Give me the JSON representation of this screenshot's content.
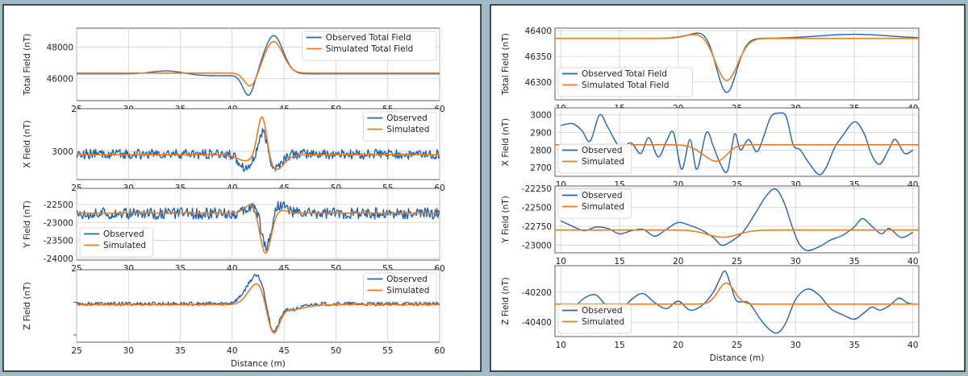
{
  "chart_data": [
    {
      "type": "line",
      "panel": "left",
      "row": 0,
      "xlim": [
        25,
        60
      ],
      "ylim": [
        44600,
        49200
      ],
      "xticks": [
        25,
        30,
        35,
        40,
        45,
        50,
        55,
        60
      ],
      "yticks": [
        46000,
        48000
      ],
      "ylabel": "Total Field (nT)",
      "xlabel": "",
      "legend_loc": "top-right",
      "series": [
        {
          "name": "Observed Total Field",
          "color": "#1f63b1",
          "baseline": 46300,
          "noise": 0,
          "features": [
            [
              33.8,
              1.5,
              220
            ],
            [
              41.6,
              0.55,
              -1350
            ],
            [
              44.0,
              0.9,
              2450
            ],
            [
              38.5,
              3,
              -120
            ]
          ]
        },
        {
          "name": "Simulated Total Field",
          "color": "#f07a18",
          "baseline": 46350,
          "noise": 0,
          "features": [
            [
              41.8,
              0.6,
              -900
            ],
            [
              44.0,
              0.9,
              2000
            ]
          ]
        }
      ]
    },
    {
      "type": "line",
      "panel": "left",
      "row": 1,
      "xlim": [
        25,
        60
      ],
      "ylim": [
        2720,
        3420
      ],
      "xticks": [
        25,
        30,
        35,
        40,
        45,
        50,
        55,
        60
      ],
      "yticks": [
        3000
      ],
      "ylabel": "X Field (nT)",
      "xlabel": "",
      "legend_loc": "top-right",
      "series": [
        {
          "name": "Observed",
          "color": "#1f63b1",
          "baseline": 2970,
          "noise": 50,
          "features": [
            [
              41.4,
              0.7,
              -130
            ],
            [
              43.0,
              0.45,
              270
            ],
            [
              44.0,
              0.7,
              -150
            ]
          ]
        },
        {
          "name": "Simulated",
          "color": "#f07a18",
          "baseline": 2965,
          "noise": 0,
          "features": [
            [
              41.3,
              0.8,
              -60
            ],
            [
              42.9,
              0.45,
              420
            ],
            [
              44.2,
              0.8,
              -150
            ]
          ]
        }
      ]
    },
    {
      "type": "line",
      "panel": "left",
      "row": 2,
      "xlim": [
        25,
        60
      ],
      "ylim": [
        -24050,
        -22050
      ],
      "xticks": [
        25,
        30,
        35,
        40,
        45,
        50,
        55,
        60
      ],
      "yticks": [
        -22500,
        -23000,
        -23500,
        -24000
      ],
      "ylabel": "Y Field (nT)",
      "xlabel": "",
      "legend_loc": "bottom-left",
      "series": [
        {
          "name": "Observed",
          "color": "#1f63b1",
          "baseline": -22750,
          "noise": 160,
          "features": [
            [
              42.2,
              0.6,
              250
            ],
            [
              43.3,
              0.5,
              -1050
            ],
            [
              44.4,
              0.7,
              300
            ]
          ]
        },
        {
          "name": "Simulated",
          "color": "#f07a18",
          "baseline": -22740,
          "noise": 0,
          "features": [
            [
              42.0,
              0.7,
              270
            ],
            [
              43.2,
              0.55,
              -1200
            ],
            [
              44.5,
              0.7,
              100
            ]
          ]
        }
      ]
    },
    {
      "type": "line",
      "panel": "left",
      "row": 3,
      "xlim": [
        25,
        60
      ],
      "ylim": [
        -80,
        75
      ],
      "xticks": [
        25,
        30,
        35,
        40,
        45,
        50,
        55,
        60
      ],
      "yticks": [],
      "ylabel": "Z Field (nT)",
      "xlabel": "Distance (m)",
      "legend_loc": "top-right",
      "series": [
        {
          "name": "Observed",
          "color": "#1f63b1",
          "baseline": 2,
          "noise": 4,
          "features": [
            [
              42.4,
              1.0,
              61
            ],
            [
              43.9,
              0.55,
              -73
            ],
            [
              45.6,
              1.1,
              -12
            ]
          ]
        },
        {
          "name": "Simulated",
          "color": "#f07a18",
          "baseline": 0,
          "noise": 0,
          "features": [
            [
              42.5,
              0.9,
              48
            ],
            [
              43.9,
              0.6,
              -70
            ],
            [
              45.8,
              1.2,
              -10
            ]
          ]
        }
      ]
    },
    {
      "type": "line",
      "panel": "right",
      "row": 0,
      "xlim": [
        9.5,
        40.5
      ],
      "ylim": [
        46265,
        46405
      ],
      "xticks": [
        10,
        15,
        20,
        25,
        30,
        35,
        40
      ],
      "yticks": [
        46400,
        46350,
        46300
      ],
      "ylabel": "Total Field (nT)",
      "xlabel": "",
      "legend_loc": "bottom-left",
      "series": [
        {
          "name": "Observed Total Field",
          "color": "#1f63b1",
          "baseline": 46385,
          "noise": 0,
          "features": [
            [
              22.3,
              1.2,
              14
            ],
            [
              24.1,
              0.85,
              -110
            ],
            [
              35.0,
              3.0,
              8
            ]
          ]
        },
        {
          "name": "Simulated Total Field",
          "color": "#f07a18",
          "baseline": 46385,
          "noise": 0,
          "features": [
            [
              22.0,
              1.3,
              10
            ],
            [
              24.1,
              0.95,
              -85
            ]
          ]
        }
      ]
    },
    {
      "type": "line",
      "panel": "right",
      "row": 1,
      "xlim": [
        9.5,
        40.5
      ],
      "ylim": [
        2650,
        3040
      ],
      "xticks": [
        10,
        15,
        20,
        25,
        30,
        35,
        40
      ],
      "yticks": [
        3000,
        2900,
        2800,
        2700
      ],
      "ylabel": "X Field (nT)",
      "xlabel": "",
      "legend_loc": "bottom-left",
      "series": [
        {
          "name": "Observed",
          "color": "#1f63b1",
          "baseline": 2830,
          "noise": 0,
          "points": [
            [
              10,
              2940
            ],
            [
              11,
              2950
            ],
            [
              11.8,
              2910
            ],
            [
              12.5,
              2850
            ],
            [
              13.3,
              3000
            ],
            [
              14,
              2930
            ],
            [
              15,
              2820
            ],
            [
              16,
              2840
            ],
            [
              16.8,
              2780
            ],
            [
              17.5,
              2870
            ],
            [
              18.3,
              2760
            ],
            [
              19,
              2850
            ],
            [
              19.6,
              2900
            ],
            [
              20.3,
              2690
            ],
            [
              21,
              2860
            ],
            [
              21.6,
              2690
            ],
            [
              22.4,
              2900
            ],
            [
              23,
              2820
            ],
            [
              23.6,
              2720
            ],
            [
              24.2,
              2680
            ],
            [
              24.8,
              2890
            ],
            [
              25.3,
              2800
            ],
            [
              26,
              2860
            ],
            [
              26.7,
              2790
            ],
            [
              27.3,
              2880
            ],
            [
              27.9,
              2990
            ],
            [
              28.6,
              3010
            ],
            [
              29.2,
              2990
            ],
            [
              29.8,
              2830
            ],
            [
              30.4,
              2800
            ],
            [
              31.2,
              2720
            ],
            [
              32,
              2660
            ],
            [
              32.6,
              2700
            ],
            [
              33.3,
              2810
            ],
            [
              34,
              2880
            ],
            [
              35,
              2960
            ],
            [
              35.8,
              2900
            ],
            [
              36.5,
              2770
            ],
            [
              37.2,
              2720
            ],
            [
              38,
              2810
            ],
            [
              38.5,
              2860
            ],
            [
              39.3,
              2780
            ],
            [
              40,
              2800
            ]
          ]
        },
        {
          "name": "Simulated",
          "color": "#f07a18",
          "baseline": 2830,
          "noise": 0,
          "features": [
            [
              22.8,
              1.0,
              -65
            ],
            [
              23.6,
              0.7,
              -40
            ]
          ]
        }
      ]
    },
    {
      "type": "line",
      "panel": "right",
      "row": 2,
      "xlim": [
        9.5,
        40.5
      ],
      "ylim": [
        -23100,
        -22220
      ],
      "xticks": [
        10,
        15,
        20,
        25,
        30,
        35,
        40
      ],
      "yticks": [
        -22250,
        -22500,
        -22750,
        -23000
      ],
      "ylabel": "Y Field (nT)",
      "xlabel": "",
      "legend_loc": "top-left",
      "series": [
        {
          "name": "Observed",
          "color": "#1f63b1",
          "baseline": -22810,
          "noise": 0,
          "points": [
            [
              10,
              -22680
            ],
            [
              11,
              -22750
            ],
            [
              12,
              -22810
            ],
            [
              13,
              -22760
            ],
            [
              14,
              -22780
            ],
            [
              15,
              -22850
            ],
            [
              16,
              -22810
            ],
            [
              17,
              -22790
            ],
            [
              18,
              -22880
            ],
            [
              19,
              -22790
            ],
            [
              20,
              -22700
            ],
            [
              21,
              -22740
            ],
            [
              22,
              -22800
            ],
            [
              23,
              -22900
            ],
            [
              23.7,
              -23000
            ],
            [
              24.5,
              -22950
            ],
            [
              25.5,
              -22830
            ],
            [
              26.5,
              -22600
            ],
            [
              27.5,
              -22350
            ],
            [
              28.3,
              -22260
            ],
            [
              29,
              -22430
            ],
            [
              29.7,
              -22750
            ],
            [
              30.3,
              -22980
            ],
            [
              31,
              -23070
            ],
            [
              32,
              -23020
            ],
            [
              33,
              -22930
            ],
            [
              34,
              -22870
            ],
            [
              35,
              -22760
            ],
            [
              35.7,
              -22650
            ],
            [
              36.5,
              -22750
            ],
            [
              37.3,
              -22850
            ],
            [
              38,
              -22780
            ],
            [
              39,
              -22900
            ],
            [
              40,
              -22830
            ]
          ]
        },
        {
          "name": "Simulated",
          "color": "#f07a18",
          "baseline": -22800,
          "noise": 0,
          "features": [
            [
              23.8,
              1.3,
              -95
            ]
          ]
        }
      ]
    },
    {
      "type": "line",
      "panel": "right",
      "row": 3,
      "xlim": [
        9.5,
        40.5
      ],
      "ylim": [
        -40495,
        -40025
      ],
      "xticks": [
        10,
        15,
        20,
        25,
        30,
        35,
        40
      ],
      "yticks": [
        -40200,
        -40400
      ],
      "ylabel": "Z Field (nT)",
      "xlabel": "Distance (m)",
      "legend_loc": "bottom-left",
      "series": [
        {
          "name": "Observed",
          "color": "#1f63b1",
          "baseline": -40290,
          "noise": 0,
          "points": [
            [
              10,
              -40340
            ],
            [
              11,
              -40310
            ],
            [
              12,
              -40240
            ],
            [
              13,
              -40220
            ],
            [
              14,
              -40300
            ],
            [
              15,
              -40330
            ],
            [
              16,
              -40250
            ],
            [
              17,
              -40210
            ],
            [
              18,
              -40270
            ],
            [
              19,
              -40310
            ],
            [
              20,
              -40260
            ],
            [
              21,
              -40320
            ],
            [
              22,
              -40290
            ],
            [
              23,
              -40200
            ],
            [
              23.5,
              -40120
            ],
            [
              24,
              -40060
            ],
            [
              24.5,
              -40160
            ],
            [
              25,
              -40260
            ],
            [
              26,
              -40270
            ],
            [
              27,
              -40380
            ],
            [
              27.8,
              -40450
            ],
            [
              28.5,
              -40470
            ],
            [
              29.2,
              -40400
            ],
            [
              30,
              -40250
            ],
            [
              31,
              -40180
            ],
            [
              32,
              -40220
            ],
            [
              33,
              -40310
            ],
            [
              34,
              -40350
            ],
            [
              35,
              -40380
            ],
            [
              35.8,
              -40340
            ],
            [
              36.5,
              -40300
            ],
            [
              37.2,
              -40320
            ],
            [
              38,
              -40290
            ],
            [
              38.8,
              -40240
            ],
            [
              39.5,
              -40270
            ],
            [
              40,
              -40280
            ]
          ]
        },
        {
          "name": "Simulated",
          "color": "#f07a18",
          "baseline": -40280,
          "noise": 0,
          "features": [
            [
              24.1,
              0.7,
              140
            ]
          ]
        }
      ]
    }
  ]
}
